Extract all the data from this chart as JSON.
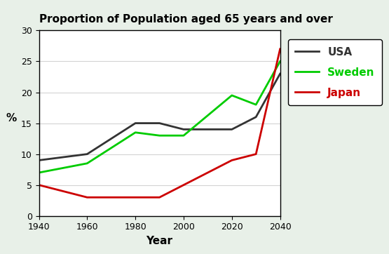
{
  "title": "Proportion of Population aged 65 years and over",
  "xlabel": "Year",
  "ylabel": "%",
  "years": [
    1940,
    1960,
    1980,
    1990,
    2000,
    2020,
    2030,
    2040
  ],
  "usa": [
    9,
    10,
    15,
    15,
    14,
    14,
    16,
    23
  ],
  "sweden": [
    7,
    8.5,
    13.5,
    13,
    13,
    19.5,
    18,
    25
  ],
  "japan": [
    5,
    3,
    3,
    3,
    5,
    9,
    10,
    27
  ],
  "usa_color": "#333333",
  "sweden_color": "#00cc00",
  "japan_color": "#cc0000",
  "ylim": [
    0,
    30
  ],
  "xlim": [
    1940,
    2040
  ],
  "xticks": [
    1940,
    1960,
    1980,
    2000,
    2020,
    2040
  ],
  "yticks": [
    0,
    5,
    10,
    15,
    20,
    25,
    30
  ],
  "background_color": "#e8f0e8",
  "plot_background": "#ffffff",
  "title_fontsize": 11,
  "axis_label_fontsize": 11,
  "tick_fontsize": 9,
  "legend_fontsize": 11,
  "linewidth": 2.0,
  "legend_labels": [
    "USA",
    "Sweden",
    "Japan"
  ],
  "legend_colors": [
    "#333333",
    "#00cc00",
    "#cc0000"
  ]
}
